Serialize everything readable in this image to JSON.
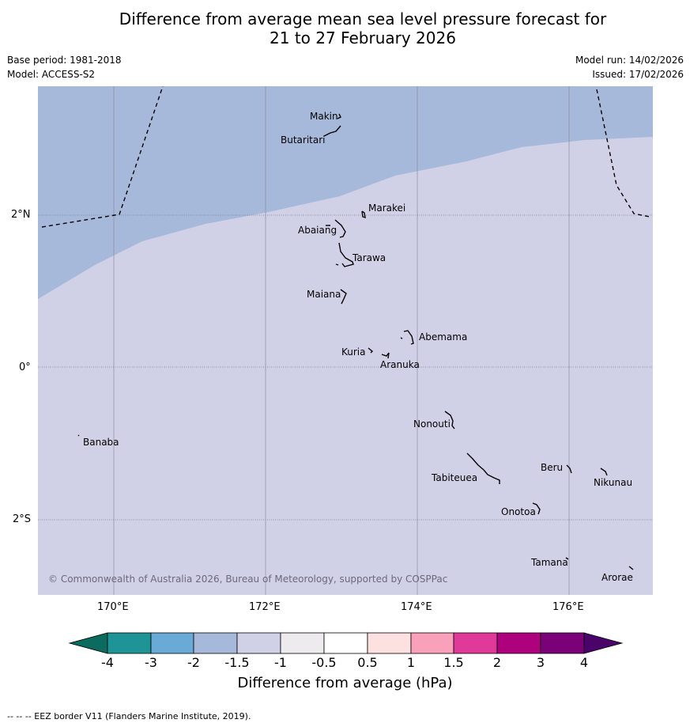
{
  "title": {
    "line1": "Difference from average mean sea level pressure forecast for",
    "line2": "21 to 27 February 2026"
  },
  "meta": {
    "base_period": "Base period: 1981-2018",
    "model": "Model: ACCESS-S2",
    "model_run": "Model run: 14/02/2026",
    "issued": "Issued: 17/02/2026"
  },
  "axes": {
    "lat_labels": [
      "2°N",
      "0°",
      "2°S"
    ],
    "lon_labels": [
      "170°E",
      "172°E",
      "174°E",
      "176°E"
    ]
  },
  "places": {
    "makin": "Makin",
    "butaritari": "Butaritari",
    "marakei": "Marakei",
    "abaiang": "Abaiang",
    "tarawa": "Tarawa",
    "maiana": "Maiana",
    "abemama": "Abemama",
    "kuria": "Kuria",
    "aranuka": "Aranuka",
    "nonouti": "Nonouti",
    "banaba": "Banaba",
    "tabiteuea": "Tabiteuea",
    "beru": "Beru",
    "nikunau": "Nikunau",
    "onotoa": "Onotoa",
    "tamana": "Tamana",
    "arorae": "Arorae"
  },
  "copyright": "© Commonwealth of Australia 2026, Bureau of Meteorology, supported by COSPPac",
  "colorbar": {
    "title": "Difference from average (hPa)",
    "ticks": [
      "-4",
      "-3",
      "-2",
      "-1.5",
      "-1",
      "-0.5",
      "0.5",
      "1",
      "1.5",
      "2",
      "3",
      "4"
    ],
    "colors": {
      "under": "#0b6b5e",
      "b1": "#1e9496",
      "b2": "#6aaad6",
      "b3": "#a7b9da",
      "b4": "#d0d1e6",
      "b5": "#eeebef",
      "b6": "#ffffff",
      "b7": "#fde0e0",
      "b8": "#f9a0bb",
      "b9": "#df3a9a",
      "b10": "#ad017e",
      "b11": "#7a0178",
      "over": "#4a0368"
    }
  },
  "footnote": "-- -- -- EEZ border V11 (Flanders Marine Institute, 2019).",
  "legend_values": {
    "region_north_anomaly": "-2 to -1.5",
    "region_south_anomaly": "-1.5 to -1"
  }
}
